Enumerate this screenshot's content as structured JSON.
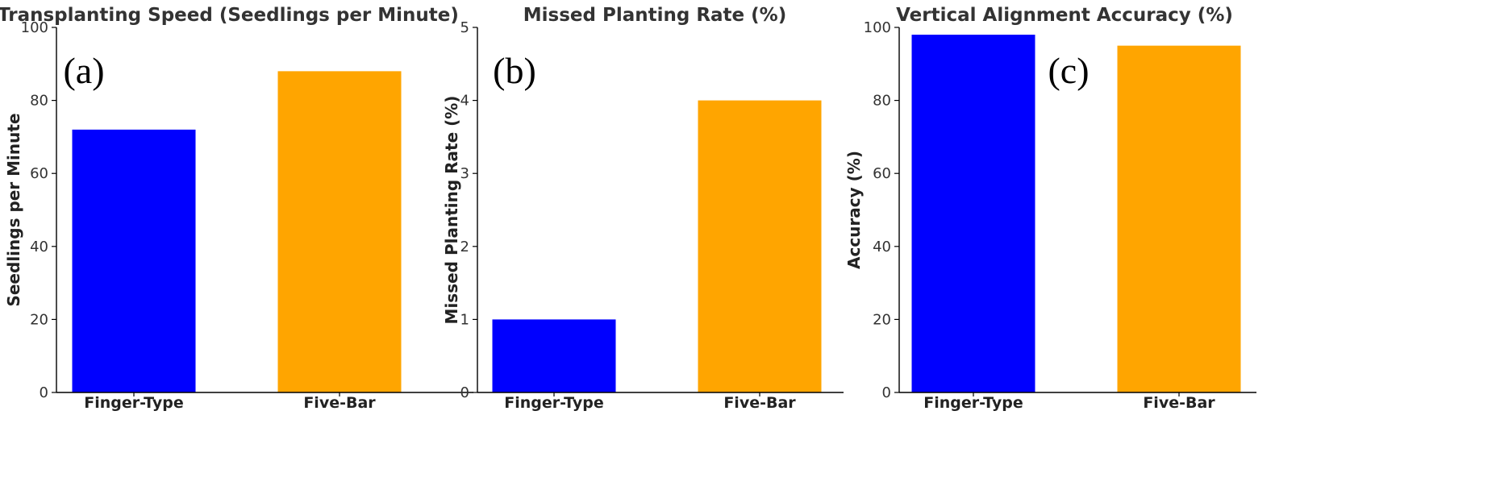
{
  "chart_data": [
    {
      "type": "bar",
      "panel": "(a)",
      "title": "Transplanting Speed (Seedlings per Minute)",
      "xlabel": "",
      "ylabel": "Seedlings per Minute",
      "categories": [
        "Finger-Type",
        "Five-Bar"
      ],
      "values": [
        72,
        88
      ],
      "colors": [
        "#0000ff",
        "#ffa500"
      ],
      "ylim": [
        0,
        100
      ],
      "yticks": [
        0,
        20,
        40,
        60,
        80,
        100
      ],
      "grid": false
    },
    {
      "type": "bar",
      "panel": "(b)",
      "title": "Missed Planting Rate (%)",
      "xlabel": "",
      "ylabel": "Missed Planting Rate (%)",
      "categories": [
        "Finger-Type",
        "Five-Bar"
      ],
      "values": [
        1,
        4
      ],
      "colors": [
        "#0000ff",
        "#ffa500"
      ],
      "ylim": [
        0,
        5
      ],
      "yticks": [
        0,
        1,
        2,
        3,
        4,
        5
      ],
      "grid": false
    },
    {
      "type": "bar",
      "panel": "(c)",
      "title": "Vertical Alignment Accuracy (%)",
      "xlabel": "",
      "ylabel": "Accuracy (%)",
      "categories": [
        "Finger-Type",
        "Five-Bar"
      ],
      "values": [
        98,
        95
      ],
      "colors": [
        "#0000ff",
        "#ffa500"
      ],
      "ylim": [
        0,
        100
      ],
      "yticks": [
        0,
        20,
        40,
        60,
        80,
        100
      ],
      "grid": false
    }
  ]
}
